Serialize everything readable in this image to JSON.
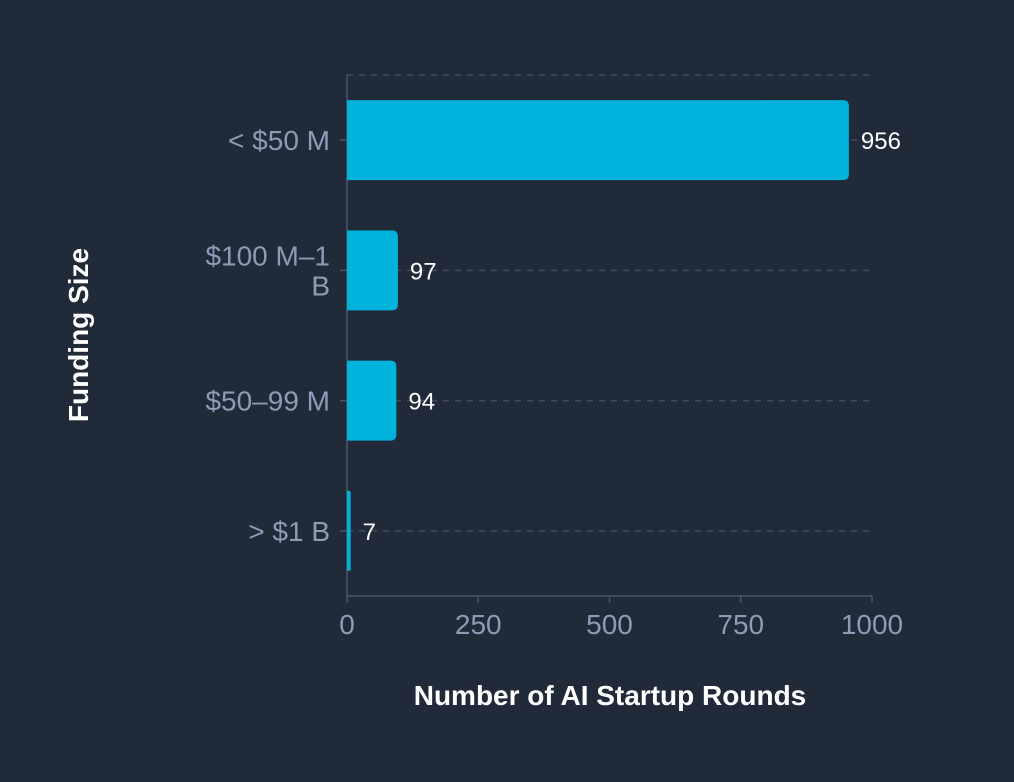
{
  "chart_data": {
    "type": "bar",
    "orientation": "horizontal",
    "categories": [
      [
        "< $50 M"
      ],
      [
        "$100 M–1",
        "B"
      ],
      [
        "$50–99 M"
      ],
      [
        "> $1 B"
      ]
    ],
    "values": [
      956,
      97,
      94,
      7
    ],
    "xlabel": "Number of AI Startup Rounds",
    "ylabel": "Funding Size",
    "xlim": [
      0,
      1000
    ],
    "xticks": [
      "0",
      "250",
      "500",
      "750",
      "1000"
    ],
    "grid": true,
    "colors": {
      "bar": "#00b2dc",
      "background": "#212a38",
      "grid": "#3f4a5c",
      "axis": "#4a5568",
      "tick_text": "#8d9bb5",
      "title_text": "#ffffff"
    }
  }
}
